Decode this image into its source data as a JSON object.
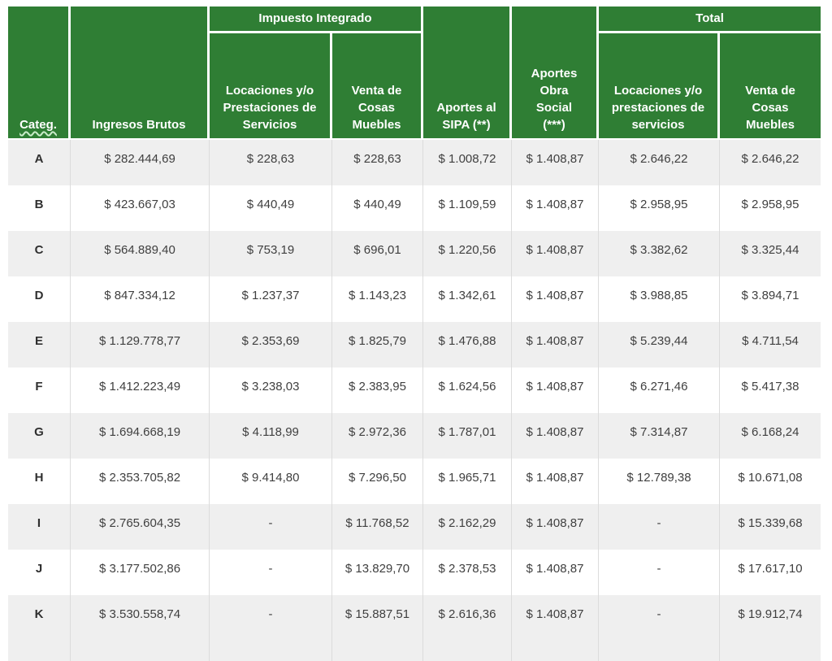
{
  "table": {
    "header": {
      "categ_label": "Categ.",
      "ingresos_label": "Ingresos Brutos",
      "impuesto_group_label": "Impuesto Integrado",
      "total_group_label": "Total",
      "impuesto_servicios_label": "Locaciones y/o\nPrestaciones de\nServicios",
      "impuesto_muebles_label": "Venta de\nCosas\nMuebles",
      "sipa_label": "Aportes al\nSIPA (**)",
      "obra_social_label": "Aportes\nObra\nSocial\n(***)",
      "total_servicios_label": "Locaciones y/o\nprestaciones de\nservicios",
      "total_muebles_label": "Venta de\nCosas\nMuebles"
    },
    "rows": [
      {
        "category": "A",
        "values": [
          "$ 282.444,69",
          "$ 228,63",
          "$ 228,63",
          "$ 1.008,72",
          "$ 1.408,87",
          "$ 2.646,22",
          "$ 2.646,22"
        ]
      },
      {
        "category": "B",
        "values": [
          "$ 423.667,03",
          "$ 440,49",
          "$ 440,49",
          "$ 1.109,59",
          "$ 1.408,87",
          "$ 2.958,95",
          "$ 2.958,95"
        ]
      },
      {
        "category": "C",
        "values": [
          "$ 564.889,40",
          "$ 753,19",
          "$ 696,01",
          "$ 1.220,56",
          "$ 1.408,87",
          "$ 3.382,62",
          "$ 3.325,44"
        ]
      },
      {
        "category": "D",
        "values": [
          "$ 847.334,12",
          "$ 1.237,37",
          "$ 1.143,23",
          "$ 1.342,61",
          "$ 1.408,87",
          "$ 3.988,85",
          "$ 3.894,71"
        ]
      },
      {
        "category": "E",
        "values": [
          "$ 1.129.778,77",
          "$ 2.353,69",
          "$ 1.825,79",
          "$ 1.476,88",
          "$ 1.408,87",
          "$ 5.239,44",
          "$ 4.711,54"
        ]
      },
      {
        "category": "F",
        "values": [
          "$ 1.412.223,49",
          "$ 3.238,03",
          "$ 2.383,95",
          "$ 1.624,56",
          "$ 1.408,87",
          "$ 6.271,46",
          "$ 5.417,38"
        ]
      },
      {
        "category": "G",
        "values": [
          "$ 1.694.668,19",
          "$ 4.118,99",
          "$ 2.972,36",
          "$ 1.787,01",
          "$ 1.408,87",
          "$ 7.314,87",
          "$ 6.168,24"
        ]
      },
      {
        "category": "H",
        "values": [
          "$ 2.353.705,82",
          "$ 9.414,80",
          "$ 7.296,50",
          "$ 1.965,71",
          "$ 1.408,87",
          "$ 12.789,38",
          "$ 10.671,08"
        ]
      },
      {
        "category": "I",
        "values": [
          "$ 2.765.604,35",
          "-",
          "$ 11.768,52",
          "$ 2.162,29",
          "$ 1.408,87",
          "-",
          "$ 15.339,68"
        ]
      },
      {
        "category": "J",
        "values": [
          "$ 3.177.502,86",
          "-",
          "$ 13.829,70",
          "$ 2.378,53",
          "$ 1.408,87",
          "-",
          "$ 17.617,10"
        ]
      },
      {
        "category": "K",
        "values": [
          "$ 3.530.558,74",
          "-",
          "$ 15.887,51",
          "$ 2.616,36",
          "$ 1.408,87",
          "-",
          "$ 19.912,74"
        ]
      }
    ]
  },
  "colors": {
    "header_green": "#2f7e34",
    "stripe_gray": "#efefef",
    "divider_gray": "#dcdcdc",
    "body_text": "#3f3f3f",
    "header_text": "#ffffff",
    "squiggle": "#c9ecc9"
  }
}
